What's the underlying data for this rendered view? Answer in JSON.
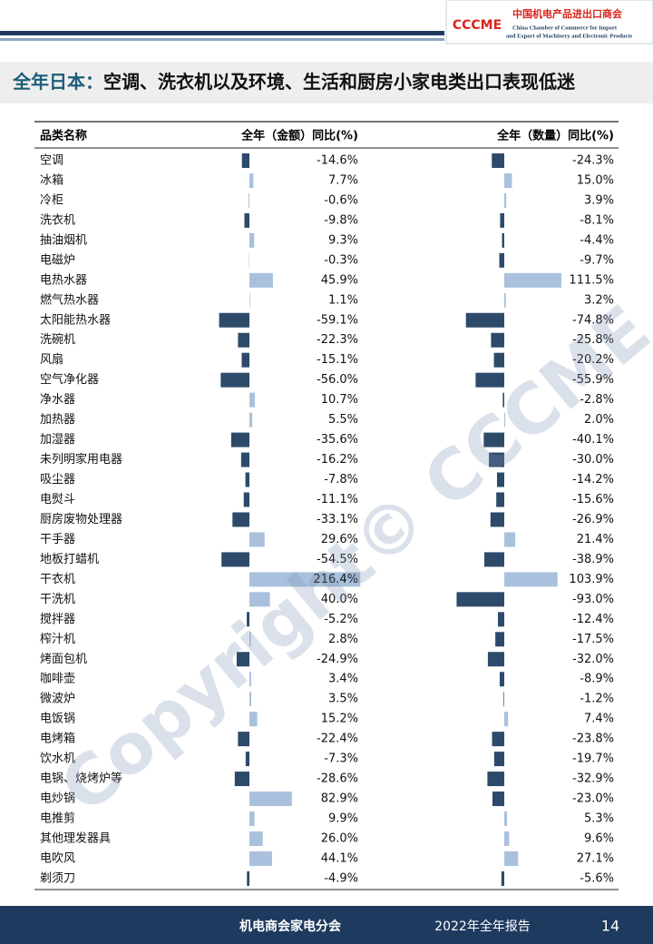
{
  "header": {
    "org_cn": "中国机电产品进出口商会",
    "org_en_1": "China Chamber of Commerce for Import",
    "org_en_2": "and Export of Machinery and Electronic Products",
    "logo": "CCCME"
  },
  "title_prefix": "全年日本：",
  "title": "空调、洗衣机以及环境、生活和厨房小家电类出口表现低迷",
  "table": {
    "columns": [
      "品类名称",
      "全年（金额）同比(%)",
      "全年（数量）同比(%)"
    ],
    "rows": [
      {
        "name": "空调",
        "amount": -14.6,
        "amount_label": "-14.6%",
        "quantity": -24.3,
        "quantity_label": "-24.3%"
      },
      {
        "name": "冰箱",
        "amount": 7.7,
        "amount_label": "7.7%",
        "quantity": 15.0,
        "quantity_label": "15.0%"
      },
      {
        "name": "冷柜",
        "amount": -0.6,
        "amount_label": "-0.6%",
        "quantity": 3.9,
        "quantity_label": "3.9%"
      },
      {
        "name": "洗衣机",
        "amount": -9.8,
        "amount_label": "-9.8%",
        "quantity": -8.1,
        "quantity_label": "-8.1%"
      },
      {
        "name": "抽油烟机",
        "amount": 9.3,
        "amount_label": "9.3%",
        "quantity": -4.4,
        "quantity_label": "-4.4%"
      },
      {
        "name": "电磁炉",
        "amount": -0.3,
        "amount_label": "-0.3%",
        "quantity": -9.7,
        "quantity_label": "-9.7%"
      },
      {
        "name": "电热水器",
        "amount": 45.9,
        "amount_label": "45.9%",
        "quantity": 111.5,
        "quantity_label": "111.5%"
      },
      {
        "name": "燃气热水器",
        "amount": 1.1,
        "amount_label": "1.1%",
        "quantity": 3.2,
        "quantity_label": "3.2%"
      },
      {
        "name": "太阳能热水器",
        "amount": -59.1,
        "amount_label": "-59.1%",
        "quantity": -74.8,
        "quantity_label": "-74.8%"
      },
      {
        "name": "洗碗机",
        "amount": -22.3,
        "amount_label": "-22.3%",
        "quantity": -25.8,
        "quantity_label": "-25.8%"
      },
      {
        "name": "风扇",
        "amount": -15.1,
        "amount_label": "-15.1%",
        "quantity": -20.2,
        "quantity_label": "-20.2%"
      },
      {
        "name": "空气净化器",
        "amount": -56.0,
        "amount_label": "-56.0%",
        "quantity": -55.9,
        "quantity_label": "-55.9%"
      },
      {
        "name": "净水器",
        "amount": 10.7,
        "amount_label": "10.7%",
        "quantity": -2.8,
        "quantity_label": "-2.8%"
      },
      {
        "name": "加热器",
        "amount": 5.5,
        "amount_label": "5.5%",
        "quantity": 2.0,
        "quantity_label": "2.0%"
      },
      {
        "name": "加湿器",
        "amount": -35.6,
        "amount_label": "-35.6%",
        "quantity": -40.1,
        "quantity_label": "-40.1%"
      },
      {
        "name": "未列明家用电器",
        "amount": -16.2,
        "amount_label": "-16.2%",
        "quantity": -30.0,
        "quantity_label": "-30.0%"
      },
      {
        "name": "吸尘器",
        "amount": -7.8,
        "amount_label": "-7.8%",
        "quantity": -14.2,
        "quantity_label": "-14.2%"
      },
      {
        "name": "电熨斗",
        "amount": -11.1,
        "amount_label": "-11.1%",
        "quantity": -15.6,
        "quantity_label": "-15.6%"
      },
      {
        "name": "厨房废物处理器",
        "amount": -33.1,
        "amount_label": "-33.1%",
        "quantity": -26.9,
        "quantity_label": "-26.9%"
      },
      {
        "name": "干手器",
        "amount": 29.6,
        "amount_label": "29.6%",
        "quantity": 21.4,
        "quantity_label": "21.4%"
      },
      {
        "name": "地板打蜡机",
        "amount": -54.5,
        "amount_label": "-54.5%",
        "quantity": -38.9,
        "quantity_label": "-38.9%"
      },
      {
        "name": "干衣机",
        "amount": 216.4,
        "amount_label": "216.4%",
        "quantity": 103.9,
        "quantity_label": "103.9%"
      },
      {
        "name": "干洗机",
        "amount": 40.0,
        "amount_label": "40.0%",
        "quantity": -93.0,
        "quantity_label": "-93.0%"
      },
      {
        "name": "搅拌器",
        "amount": -5.2,
        "amount_label": "-5.2%",
        "quantity": -12.4,
        "quantity_label": "-12.4%"
      },
      {
        "name": "榨汁机",
        "amount": 2.8,
        "amount_label": "2.8%",
        "quantity": -17.5,
        "quantity_label": "-17.5%"
      },
      {
        "name": "烤面包机",
        "amount": -24.9,
        "amount_label": "-24.9%",
        "quantity": -32.0,
        "quantity_label": "-32.0%"
      },
      {
        "name": "咖啡壶",
        "amount": 3.4,
        "amount_label": "3.4%",
        "quantity": -8.9,
        "quantity_label": "-8.9%"
      },
      {
        "name": "微波炉",
        "amount": 3.5,
        "amount_label": "3.5%",
        "quantity": -1.2,
        "quantity_label": "-1.2%"
      },
      {
        "name": "电饭锅",
        "amount": 15.2,
        "amount_label": "15.2%",
        "quantity": 7.4,
        "quantity_label": "7.4%"
      },
      {
        "name": "电烤箱",
        "amount": -22.4,
        "amount_label": "-22.4%",
        "quantity": -23.8,
        "quantity_label": "-23.8%"
      },
      {
        "name": "饮水机",
        "amount": -7.3,
        "amount_label": "-7.3%",
        "quantity": -19.7,
        "quantity_label": "-19.7%"
      },
      {
        "name": "电锅、烧烤炉等",
        "amount": -28.6,
        "amount_label": "-28.6%",
        "quantity": -32.9,
        "quantity_label": "-32.9%"
      },
      {
        "name": "电炒锅",
        "amount": 82.9,
        "amount_label": "82.9%",
        "quantity": -23.0,
        "quantity_label": "-23.0%"
      },
      {
        "name": "电推剪",
        "amount": 9.9,
        "amount_label": "9.9%",
        "quantity": 5.3,
        "quantity_label": "5.3%"
      },
      {
        "name": "其他理发器具",
        "amount": 26.0,
        "amount_label": "26.0%",
        "quantity": 9.6,
        "quantity_label": "9.6%"
      },
      {
        "name": "电吹风",
        "amount": 44.1,
        "amount_label": "44.1%",
        "quantity": 27.1,
        "quantity_label": "27.1%"
      },
      {
        "name": "剃须刀",
        "amount": -4.9,
        "amount_label": "-4.9%",
        "quantity": -5.6,
        "quantity_label": "-5.6%"
      }
    ]
  },
  "watermark": "Copyright© CCCME",
  "footer": {
    "org": "机电商会家电分会",
    "report": "2022年全年报告",
    "page": "14"
  }
}
